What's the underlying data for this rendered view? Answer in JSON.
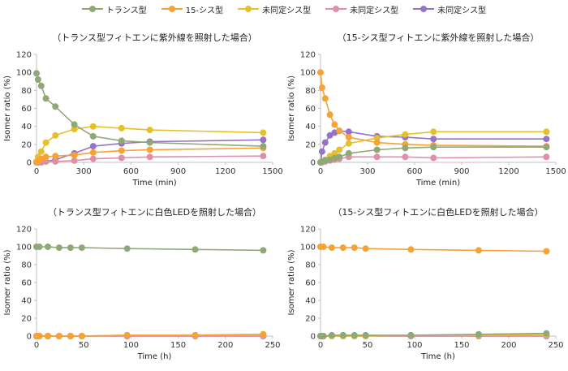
{
  "legend": [
    {
      "label": "トランス型",
      "color": "#8fa878"
    },
    {
      "label": "15-シス型",
      "color": "#f5a236"
    },
    {
      "label": "未同定シス型",
      "color": "#e6c02a"
    },
    {
      "label": "未同定シス型",
      "color": "#df8fa8"
    },
    {
      "label": "未同定シス型",
      "color": "#9673c4"
    }
  ],
  "chart_data": [
    {
      "type": "line",
      "title": "（トランス型フィトエンに紫外線を照射した場合）",
      "xlabel": "Time (min)",
      "ylabel": "Isomer ratio (%)",
      "xlim": [
        0,
        1500
      ],
      "ylim": [
        0,
        120
      ],
      "xticks": [
        0,
        300,
        600,
        900,
        1200,
        1500
      ],
      "yticks": [
        0,
        20,
        40,
        60,
        80,
        100,
        120
      ],
      "series": [
        {
          "name": "トランス型",
          "color": "#8fa878",
          "x": [
            0,
            10,
            30,
            60,
            120,
            240,
            360,
            540,
            720,
            1440
          ],
          "y": [
            99,
            92,
            85,
            71,
            62,
            42,
            29,
            24,
            22,
            18
          ]
        },
        {
          "name": "15-シス型",
          "color": "#f5a236",
          "x": [
            0,
            10,
            30,
            60,
            120,
            240,
            360,
            540,
            720,
            1440
          ],
          "y": [
            0,
            2,
            4,
            6,
            7,
            8,
            11,
            13,
            14,
            16
          ]
        },
        {
          "name": "未同定シス型",
          "color": "#e6c02a",
          "x": [
            0,
            10,
            30,
            60,
            120,
            240,
            360,
            540,
            720,
            1440
          ],
          "y": [
            1,
            6,
            12,
            22,
            30,
            37,
            40,
            38,
            36,
            33
          ]
        },
        {
          "name": "未同定シス型",
          "color": "#df8fa8",
          "x": [
            0,
            10,
            30,
            60,
            120,
            240,
            360,
            540,
            720,
            1440
          ],
          "y": [
            0,
            0,
            0,
            1,
            1,
            2,
            4,
            5,
            6,
            7
          ]
        },
        {
          "name": "未同定シス型",
          "color": "#9673c4",
          "x": [
            0,
            10,
            30,
            60,
            120,
            240,
            360,
            540,
            720,
            1440
          ],
          "y": [
            0,
            0,
            0,
            1,
            3,
            10,
            18,
            21,
            23,
            25
          ]
        }
      ]
    },
    {
      "type": "line",
      "title": "（15-シス型フィトエンに紫外線を照射した場合）",
      "xlabel": "Time (min)",
      "ylabel": "Isomer ratio (%)",
      "xlim": [
        0,
        1500
      ],
      "ylim": [
        0,
        120
      ],
      "xticks": [
        0,
        300,
        600,
        900,
        1200,
        1500
      ],
      "yticks": [
        0,
        20,
        40,
        60,
        80,
        100,
        120
      ],
      "series": [
        {
          "name": "トランス型",
          "color": "#8fa878",
          "x": [
            0,
            10,
            30,
            60,
            90,
            120,
            180,
            360,
            540,
            720,
            1440
          ],
          "y": [
            0,
            1,
            2,
            3,
            5,
            6,
            10,
            14,
            16,
            17,
            17
          ]
        },
        {
          "name": "15-シス型",
          "color": "#f5a236",
          "x": [
            0,
            10,
            30,
            60,
            90,
            120,
            180,
            360,
            540,
            720,
            1440
          ],
          "y": [
            100,
            83,
            71,
            53,
            42,
            35,
            28,
            22,
            20,
            19,
            18
          ]
        },
        {
          "name": "未同定シス型",
          "color": "#e6c02a",
          "x": [
            0,
            10,
            30,
            60,
            90,
            120,
            180,
            360,
            540,
            720,
            1440
          ],
          "y": [
            0,
            1,
            3,
            7,
            10,
            14,
            21,
            27,
            31,
            34,
            34
          ]
        },
        {
          "name": "未同定シス型",
          "color": "#df8fa8",
          "x": [
            0,
            10,
            30,
            60,
            90,
            120,
            180,
            360,
            540,
            720,
            1440
          ],
          "y": [
            0,
            0,
            1,
            2,
            3,
            4,
            6,
            6,
            6,
            5,
            6
          ]
        },
        {
          "name": "未同定シス型",
          "color": "#9673c4",
          "x": [
            0,
            10,
            30,
            60,
            90,
            120,
            180,
            360,
            540,
            720,
            1440
          ],
          "y": [
            0,
            12,
            22,
            30,
            33,
            35,
            34,
            29,
            28,
            26,
            26
          ]
        }
      ]
    },
    {
      "type": "line",
      "title": "（トランス型フィトエンに白色LEDを照射した場合）",
      "xlabel": "Time (h)",
      "ylabel": "Isomer ratio (%)",
      "xlim": [
        0,
        250
      ],
      "ylim": [
        0,
        120
      ],
      "xticks": [
        0,
        50,
        100,
        150,
        200,
        250
      ],
      "yticks": [
        0,
        20,
        40,
        60,
        80,
        100,
        120
      ],
      "series": [
        {
          "name": "トランス型",
          "color": "#8fa878",
          "x": [
            0,
            3,
            12,
            24,
            36,
            48,
            96,
            168,
            240
          ],
          "y": [
            100,
            100,
            100,
            99,
            99,
            99,
            98,
            97,
            96
          ]
        },
        {
          "name": "15-シス型",
          "color": "#f5a236",
          "x": [
            0,
            3,
            12,
            24,
            36,
            48,
            96,
            168,
            240
          ],
          "y": [
            0,
            0,
            0,
            0,
            0,
            0,
            1,
            1,
            2
          ]
        },
        {
          "name": "未同定シス型",
          "color": "#e6c02a",
          "x": [
            0,
            3,
            12,
            24,
            36,
            48,
            96,
            168,
            240
          ],
          "y": [
            0,
            0,
            0,
            0,
            0,
            0,
            1,
            1,
            2
          ]
        },
        {
          "name": "未同定シス型",
          "color": "#df8fa8",
          "x": [
            0,
            3,
            12,
            24,
            36,
            48,
            96,
            168,
            240
          ],
          "y": [
            0,
            0,
            0,
            0,
            0,
            0,
            0,
            0,
            0
          ]
        },
        {
          "name": "未同定シス型",
          "color": "#9673c4",
          "x": [
            0,
            3,
            12,
            24,
            36,
            48,
            96,
            168,
            240
          ],
          "y": [
            0,
            0,
            0,
            0,
            0,
            0,
            0,
            0,
            0
          ]
        }
      ]
    },
    {
      "type": "line",
      "title": "（15-シス型フィトエンに白色LEDを照射した場合）",
      "xlabel": "Time (h)",
      "ylabel": "Isomer ratio (%)",
      "xlim": [
        0,
        250
      ],
      "ylim": [
        0,
        120
      ],
      "xticks": [
        0,
        50,
        100,
        150,
        200,
        250
      ],
      "yticks": [
        0,
        20,
        40,
        60,
        80,
        100,
        120
      ],
      "series": [
        {
          "name": "トランス型",
          "color": "#8fa878",
          "x": [
            0,
            3,
            12,
            24,
            36,
            48,
            96,
            168,
            240
          ],
          "y": [
            0,
            0,
            1,
            1,
            1,
            1,
            1,
            2,
            3
          ]
        },
        {
          "name": "15-シス型",
          "color": "#f5a236",
          "x": [
            0,
            3,
            12,
            24,
            36,
            48,
            96,
            168,
            240
          ],
          "y": [
            100,
            100,
            99,
            99,
            99,
            98,
            97,
            96,
            95
          ]
        },
        {
          "name": "未同定シス型",
          "color": "#e6c02a",
          "x": [
            0,
            3,
            12,
            24,
            36,
            48,
            96,
            168,
            240
          ],
          "y": [
            0,
            0,
            0,
            0,
            0,
            0,
            1,
            1,
            2
          ]
        },
        {
          "name": "未同定シス型",
          "color": "#df8fa8",
          "x": [
            0,
            3,
            12,
            24,
            36,
            48,
            96,
            168,
            240
          ],
          "y": [
            0,
            0,
            0,
            0,
            0,
            0,
            0,
            0,
            0
          ]
        },
        {
          "name": "未同定シス型",
          "color": "#9673c4",
          "x": [
            0,
            3,
            12,
            24,
            36,
            48,
            96,
            168,
            240
          ],
          "y": [
            0,
            0,
            0,
            0,
            0,
            0,
            0,
            0,
            0
          ]
        }
      ]
    }
  ]
}
